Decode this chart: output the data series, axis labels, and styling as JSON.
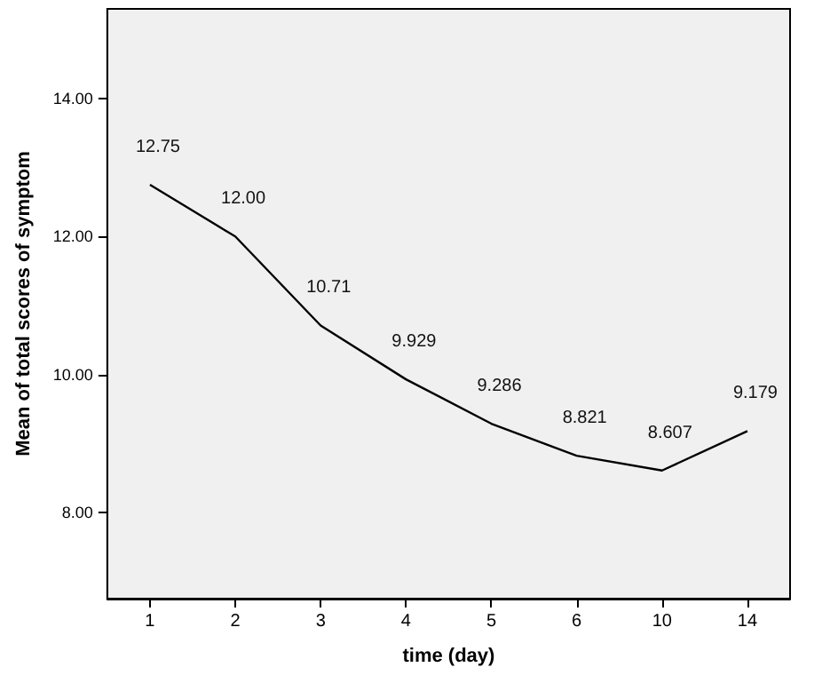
{
  "chart_data": {
    "type": "line",
    "xlabel": "time (day)",
    "ylabel": "Mean of total scores of symptom",
    "categories": [
      "1",
      "2",
      "3",
      "4",
      "5",
      "6",
      "10",
      "14"
    ],
    "values": [
      12.75,
      12.0,
      10.71,
      9.929,
      9.286,
      8.821,
      8.607,
      9.179
    ],
    "value_labels": [
      "12.75",
      "12.00",
      "10.71",
      "9.929",
      "9.286",
      "8.821",
      "8.607",
      "9.179"
    ],
    "color": "#000000",
    "ylim": [
      6.75,
      15.3
    ],
    "yticks": [
      {
        "value": 8,
        "label": "8.00"
      },
      {
        "value": 10,
        "label": "10.00"
      },
      {
        "value": 12,
        "label": "12.00"
      },
      {
        "value": 14,
        "label": "14.00"
      }
    ],
    "grid": false,
    "marker": "none",
    "line_style": "solid"
  }
}
